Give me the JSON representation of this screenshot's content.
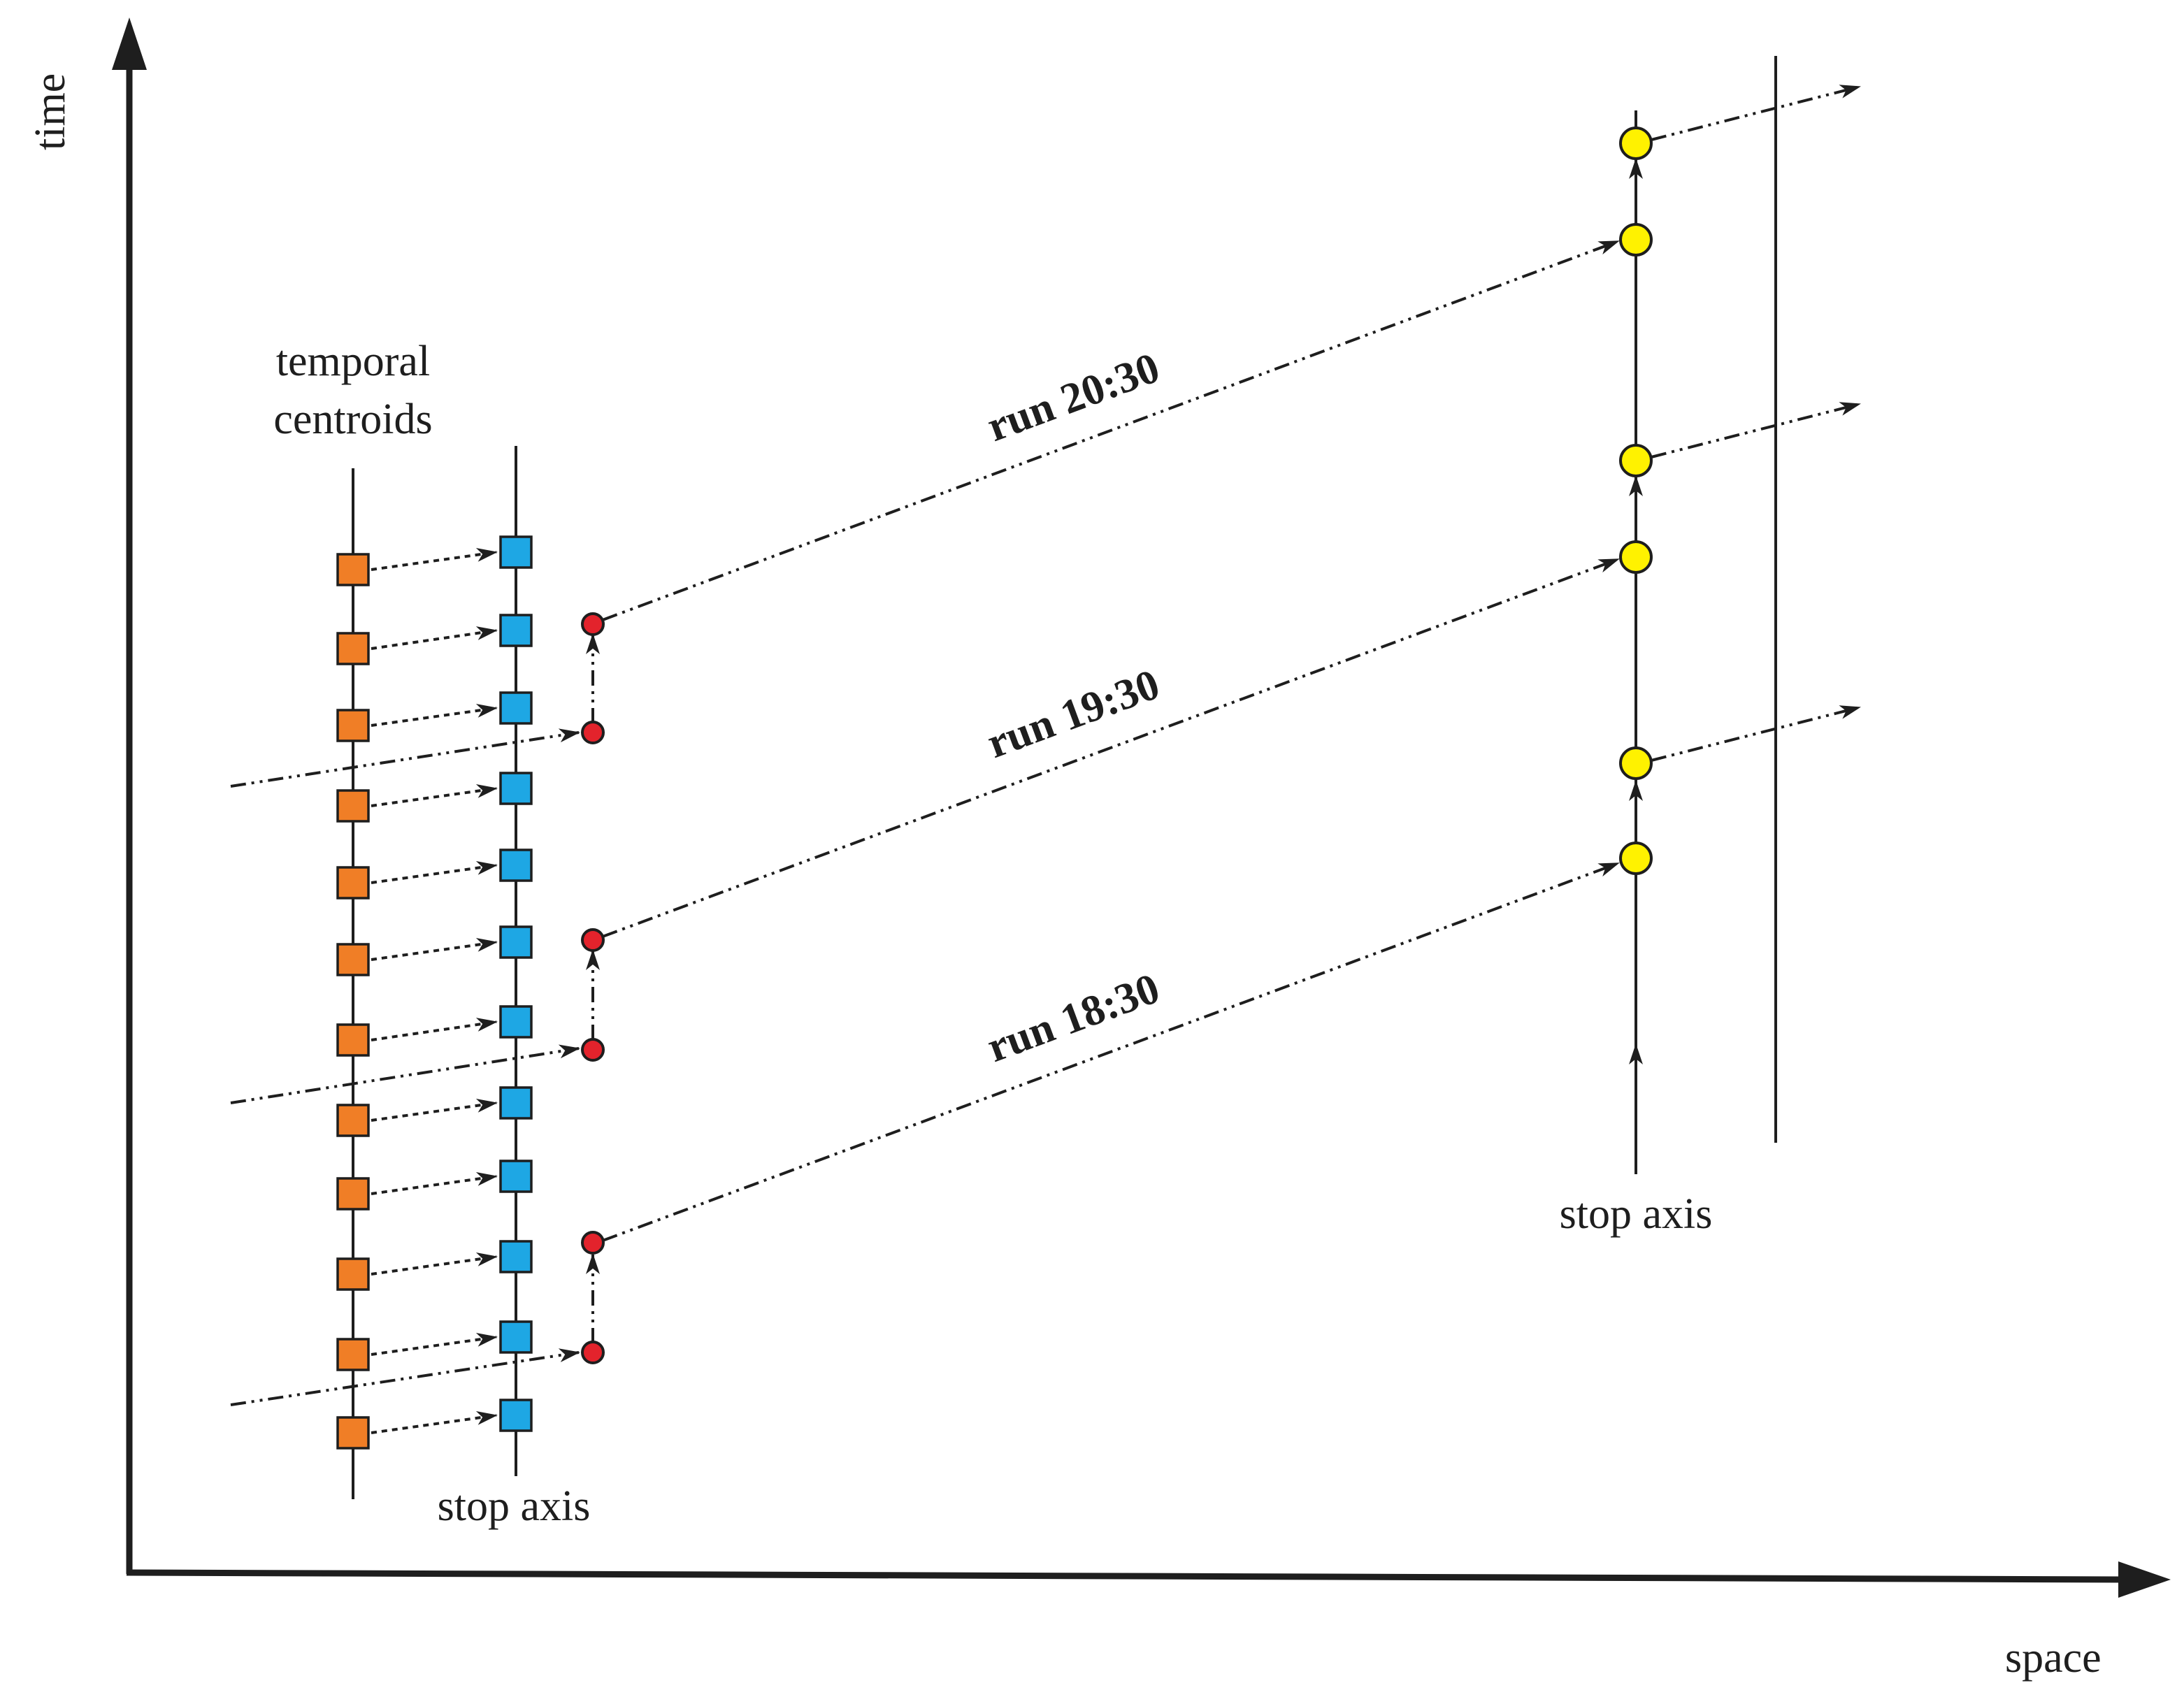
{
  "axes": {
    "y_label": "time",
    "x_label": "space"
  },
  "labels": {
    "temporal_centroids_line1": "temporal",
    "temporal_centroids_line2": "centroids",
    "stop_axis_left": "stop axis",
    "stop_axis_right": "stop axis"
  },
  "runs": [
    {
      "label": "run 20:30"
    },
    {
      "label": "run 19:30"
    },
    {
      "label": "run 18:30"
    }
  ],
  "colors": {
    "centroid": "#f07e26",
    "stop": "#1ea7e4",
    "departure": "#e3232c",
    "arrival": "#fff200",
    "line": "#1e1e1e"
  }
}
